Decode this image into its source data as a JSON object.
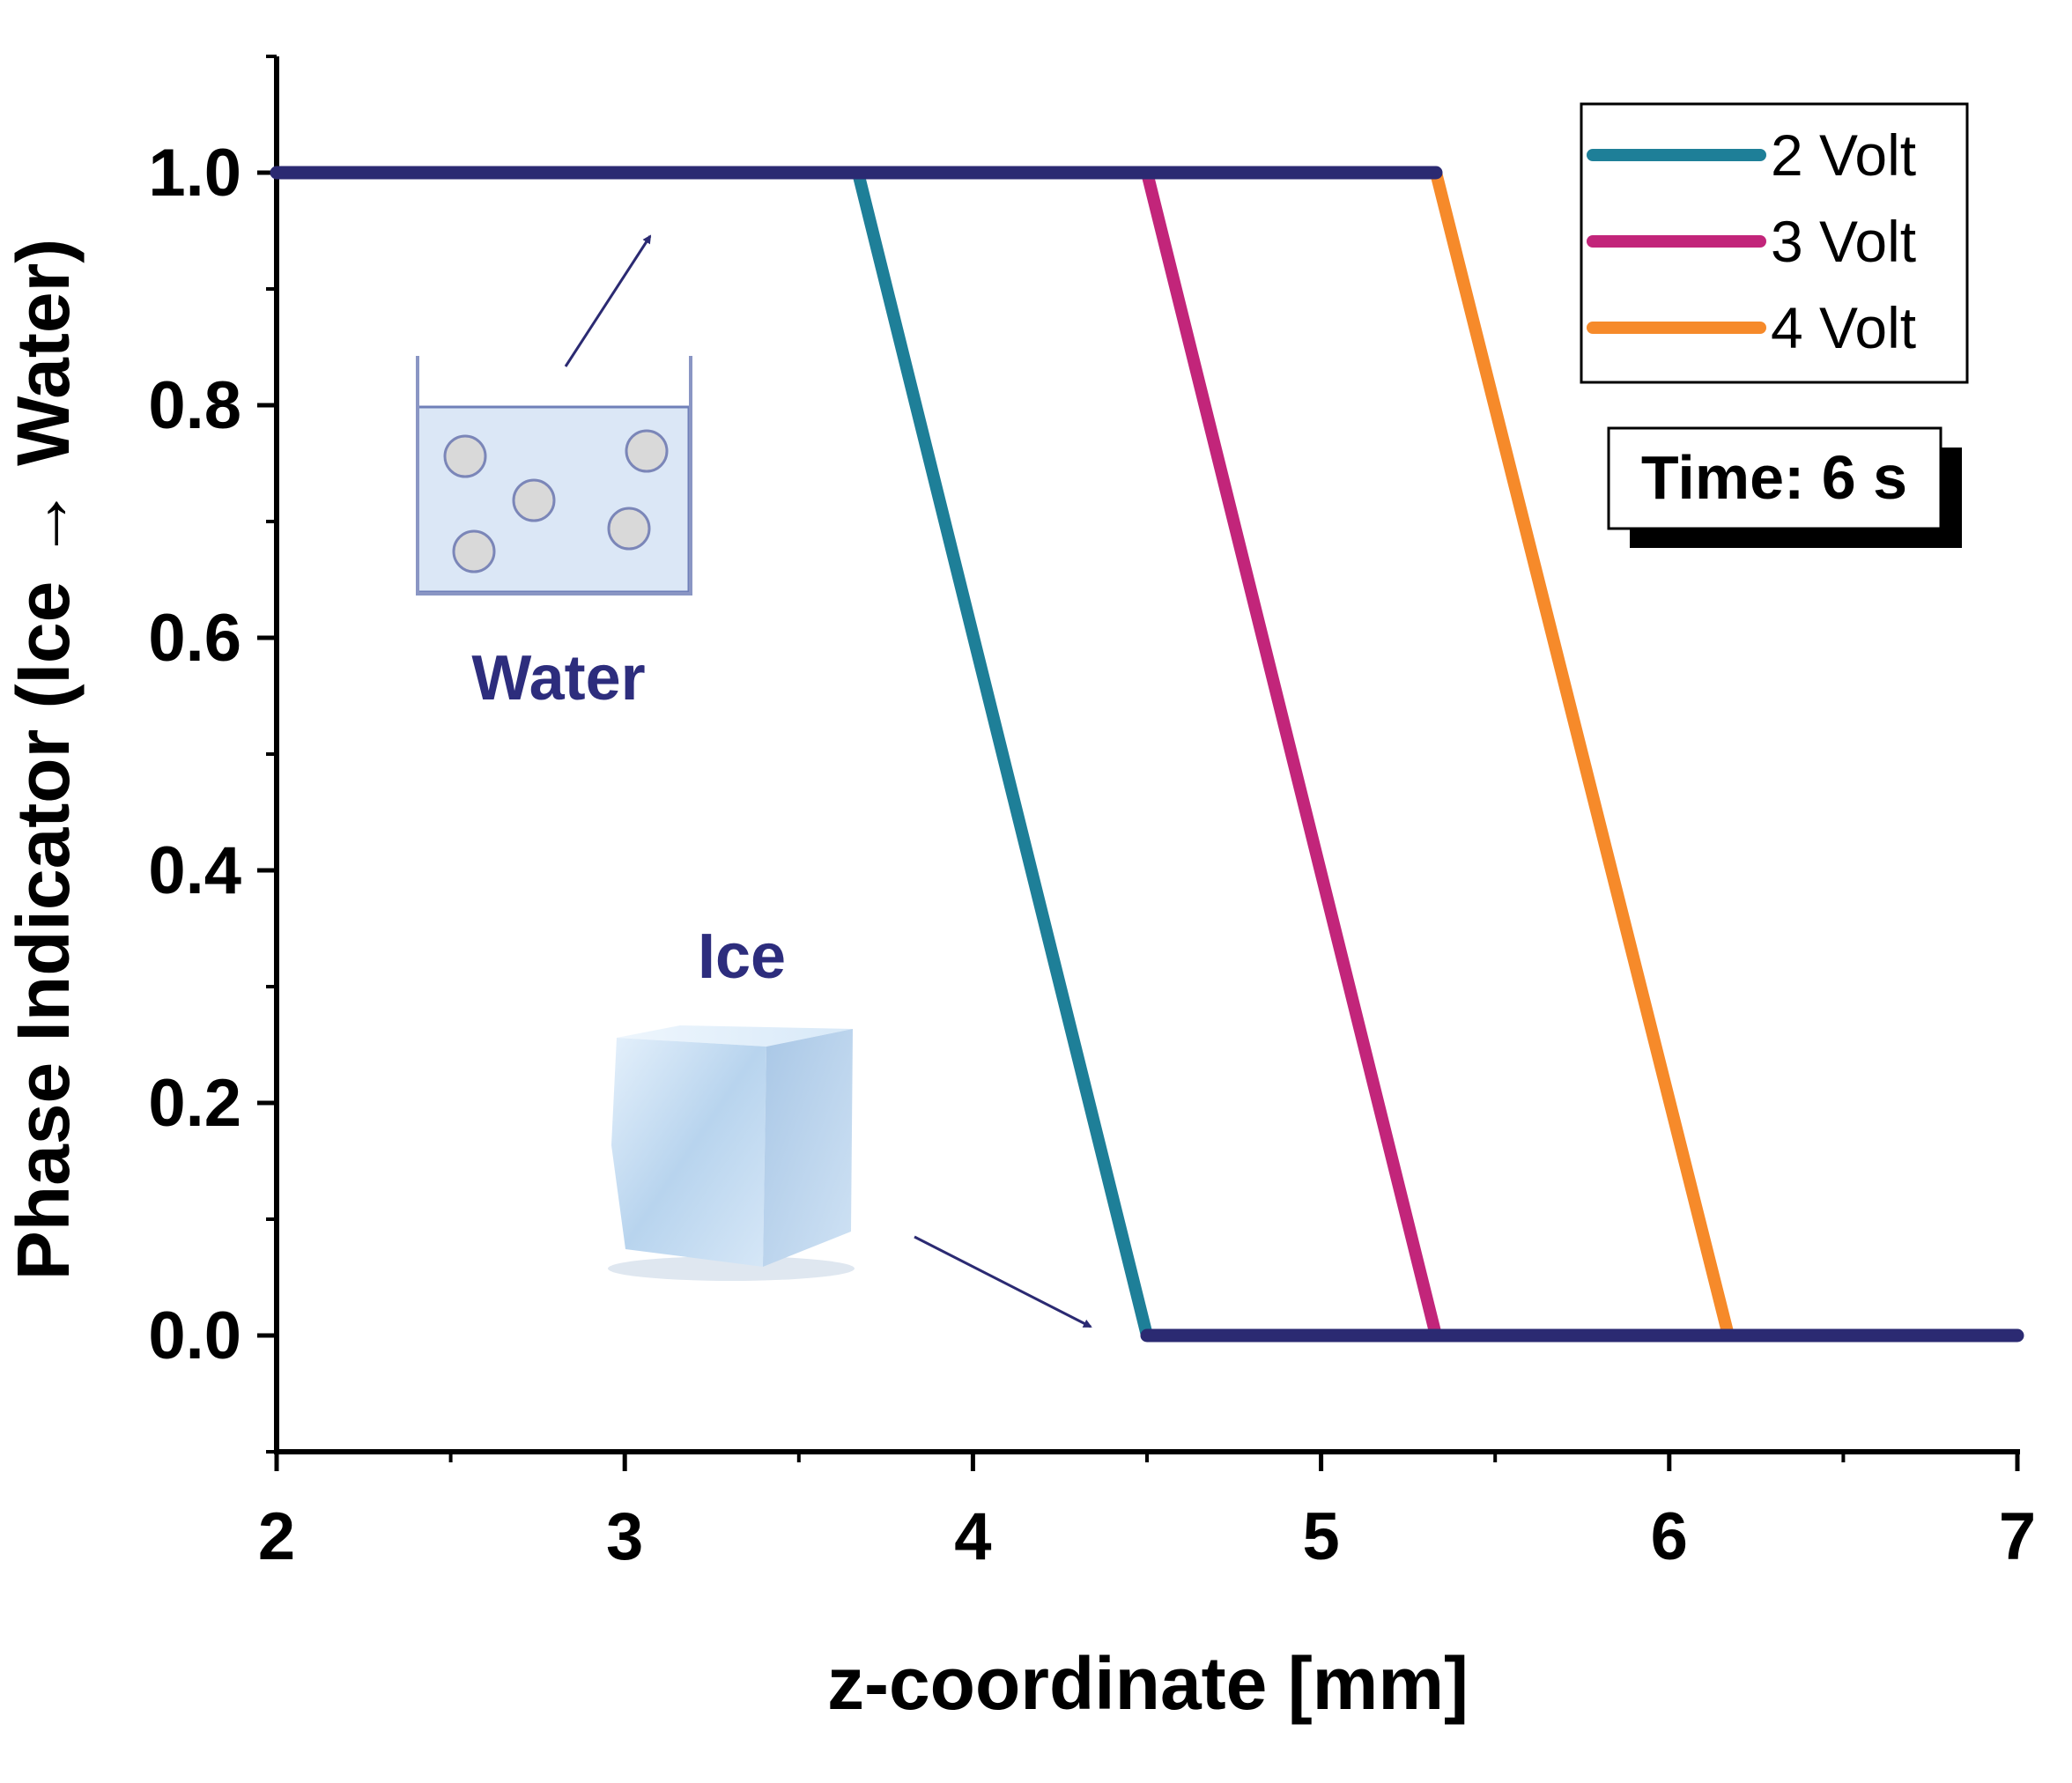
{
  "chart_data": {
    "type": "line",
    "xlabel": "z-coordinate [mm]",
    "ylabel": "Phase Indicator (Ice → Water)",
    "xlim": [
      2,
      7
    ],
    "ylim": [
      -0.1,
      1.1
    ],
    "xticks": [
      2,
      3,
      4,
      5,
      6,
      7
    ],
    "xtick_labels": [
      "2",
      "3",
      "4",
      "5",
      "6",
      "7"
    ],
    "yticks": [
      0.0,
      0.2,
      0.4,
      0.6,
      0.8,
      1.0
    ],
    "ytick_labels": [
      "0.0",
      "0.2",
      "0.4",
      "0.6",
      "0.8",
      "1.0"
    ],
    "grid": false,
    "legend_position": "top-right",
    "baseline": {
      "color": "#2b2a72",
      "segments": [
        {
          "x": [
            2.0,
            5.33
          ],
          "y": [
            1.0,
            1.0
          ]
        },
        {
          "x": [
            4.5,
            7.0
          ],
          "y": [
            0.0,
            0.0
          ]
        }
      ]
    },
    "series": [
      {
        "name": "2 Volt",
        "color": "#1e7f98",
        "x": [
          3.67,
          4.5
        ],
        "y": [
          1.0,
          0.0
        ]
      },
      {
        "name": "3 Volt",
        "color": "#c2257a",
        "x": [
          4.5,
          5.33
        ],
        "y": [
          1.0,
          0.0
        ]
      },
      {
        "name": "4 Volt",
        "color": "#f68a2a",
        "x": [
          5.33,
          6.17
        ],
        "y": [
          1.0,
          0.0
        ]
      }
    ],
    "annotations": {
      "time_box": "Time: 6 s",
      "water_label": "Water",
      "ice_label": "Ice"
    }
  }
}
